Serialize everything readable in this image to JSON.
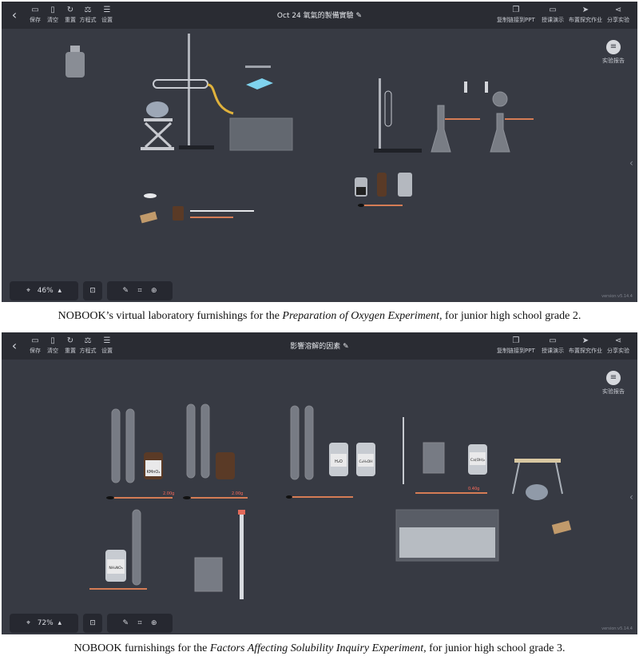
{
  "toolbar": {
    "save": "保存",
    "clear": "清空",
    "reset": "重置",
    "equation": "方程式",
    "settings": "设置"
  },
  "right_toolbar": {
    "copy_ppt": "复制链接到PPT",
    "demo": "授课演示",
    "assign": "布置探究作业",
    "share": "分享实验"
  },
  "report_label": "实验报告",
  "screen1": {
    "title": "Oct 24 氧氣的製備實驗",
    "zoom": "46%",
    "version": "version:v5.14.4"
  },
  "screen2": {
    "title": "影響溶解的因素",
    "zoom": "72%",
    "version": "version:v5.14.4",
    "labels": {
      "bottle_kmno4": "KMnO₄",
      "bottle_h2o": "H₂O",
      "bottle_c2h5oh": "C₂H₅OH",
      "bottle_ca": "Ca(OH)₂",
      "bottle_no3": "NH₄NO₃",
      "scale1": "2.00g",
      "scale2": "2.00g",
      "scale3": "0.40g"
    }
  },
  "caption1": {
    "pre": "NOBOOK’s virtual laboratory furnishings for the ",
    "italic": "Preparation of Oxygen Experiment",
    "post": ", for junior high school grade 2."
  },
  "caption2": {
    "pre": "NOBOOK furnishings for the ",
    "italic": "Factors Affecting Solubility Inquiry Experiment",
    "post": ", for junior high school grade 3."
  }
}
